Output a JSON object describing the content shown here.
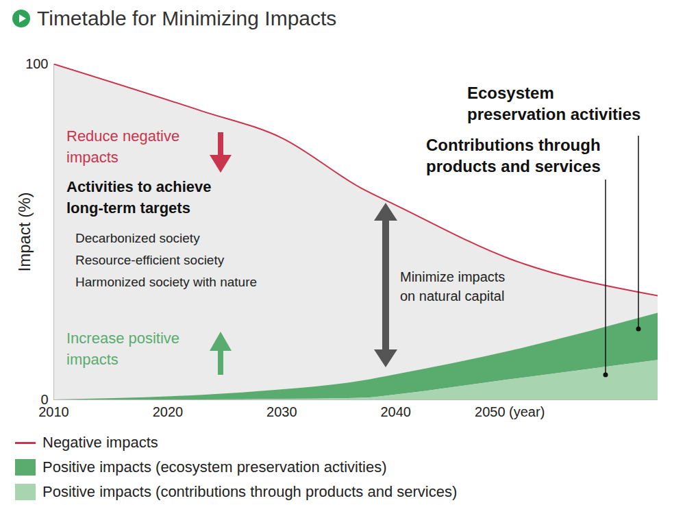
{
  "chart_data": {
    "type": "area",
    "title": "Timetable for Minimizing Impacts",
    "ylabel": "Impact (%)",
    "x": [
      2010,
      2023,
      2030,
      2037,
      2040,
      2050,
      2063
    ],
    "series": [
      {
        "name": "Negative impacts",
        "color": "#c8354c",
        "type": "line",
        "values": [
          100,
          86,
          78,
          63,
          58,
          42,
          31
        ]
      },
      {
        "name": "Positive impacts (ecosystem preservation activities)",
        "color": "#5aab6e",
        "type": "area",
        "values": [
          0,
          1.4,
          2.8,
          5.1,
          6,
          8.5,
          14
        ]
      },
      {
        "name": "Positive impacts (contributions through products and services)",
        "color": "#a8d5b0",
        "type": "area",
        "values": [
          0,
          0,
          0.2,
          0.5,
          1.5,
          6,
          11.8
        ]
      }
    ],
    "stacked": true,
    "xlim": [
      2010,
      2063
    ],
    "xticks": [
      2010,
      2020,
      2030,
      2040,
      {
        "value": 2050,
        "label": "2050 (year)"
      }
    ],
    "ylim": [
      0,
      100
    ],
    "yticks": [
      0,
      100
    ],
    "grid": false,
    "legend": "bottom",
    "annotations": [
      "Reduce negative\nimpacts",
      "Activities to achieve\nlong-term targets",
      "Decarbonized society",
      "Resource-efficient society",
      "Harmonized society with nature",
      "Increase positive\nimpacts",
      "Minimize impacts\non natural capital",
      "Ecosystem\npreservation activities",
      "Contributions through\nproducts and services"
    ]
  }
}
